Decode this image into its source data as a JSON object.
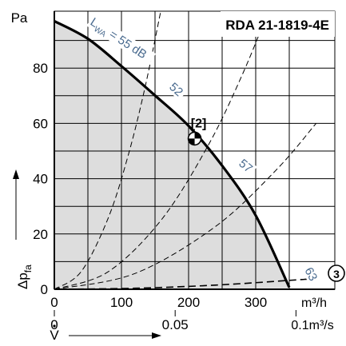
{
  "chart_data": {
    "type": "line",
    "title": "RDA 21-1819-4E",
    "y_unit": "Pa",
    "y_axis_symbol": "Δp",
    "y_axis_subscript": "fa",
    "flow_symbol": "V",
    "x_ticks": [
      "0",
      "100",
      "200",
      "300"
    ],
    "x_unit": "m³/h",
    "x2_ticks": [
      "0",
      "0.05",
      "0.1"
    ],
    "x2_unit_suffix": "m³/s",
    "y_ticks": [
      "0",
      "20",
      "40",
      "60",
      "80"
    ],
    "xlim": [
      0,
      390
    ],
    "ylim": [
      0,
      100
    ],
    "grid": true,
    "fan_curve": {
      "x": [
        0,
        50,
        100,
        150,
        200,
        250,
        300,
        350
      ],
      "y": [
        97,
        90.6,
        80.7,
        70.1,
        59.1,
        44.7,
        26.7,
        0.7
      ]
    },
    "system_curves": [
      {
        "x": [
          0,
          40,
          80,
          110,
          135,
          158
        ],
        "y": [
          0,
          6.4,
          25.6,
          48.4,
          72.9,
          99.9
        ]
      },
      {
        "x": [
          0,
          80,
          160,
          230,
          280,
          318
        ],
        "y": [
          0,
          6.3,
          25.3,
          52.4,
          77.6,
          100
        ]
      },
      {
        "x": [
          0,
          120,
          240,
          330,
          390
        ],
        "y": [
          0,
          5.7,
          22.7,
          43,
          60
        ]
      },
      {
        "x": [
          0,
          120,
          240,
          360,
          380
        ],
        "y": [
          0,
          0.37,
          1.5,
          3.37,
          3.75
        ]
      }
    ],
    "sound_levels": [
      {
        "label": "L",
        "subscript": "WA",
        "suffix": " = 55 dB"
      },
      {
        "label": "52"
      },
      {
        "label": "57"
      },
      {
        "label": "63"
      }
    ],
    "operating_point": {
      "label": "[2]",
      "x": 209,
      "y": 54.5
    },
    "system_marker": {
      "label": "3"
    }
  },
  "colors": {
    "fill": "#dddddd",
    "grid": "#000000",
    "curve": "#000000",
    "sound_label": "#4a6b8f"
  }
}
